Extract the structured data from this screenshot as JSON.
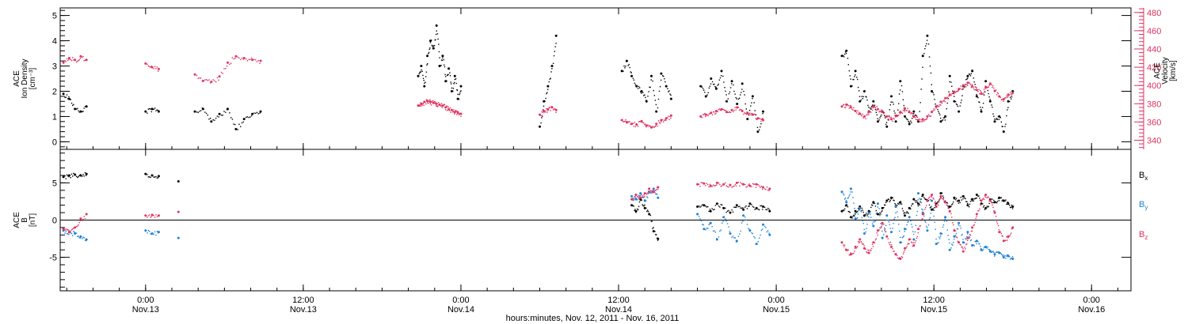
{
  "colors": {
    "black": "#000000",
    "pink": "#e0325f",
    "blue": "#1f80d8"
  },
  "chart_data": {
    "type": "scatter",
    "xlabel": "hours:minutes, Nov. 12, 2011 - Nov. 16, 2011",
    "x_ticks": [
      {
        "time": "2011-11-13 00:00",
        "hh": "0:00",
        "date": "Nov.13"
      },
      {
        "time": "2011-11-13 12:00",
        "hh": "12:00",
        "date": "Nov.13"
      },
      {
        "time": "2011-11-14 00:00",
        "hh": "0:00",
        "date": "Nov.14"
      },
      {
        "time": "2011-11-14 12:00",
        "hh": "12:00",
        "date": "Nov.14"
      },
      {
        "time": "2011-11-15 00:00",
        "hh": "0:00",
        "date": "Nov.15"
      },
      {
        "time": "2011-11-15 12:00",
        "hh": "12:00",
        "date": "Nov.15"
      },
      {
        "time": "2011-11-16 00:00",
        "hh": "0:00",
        "date": "Nov.16"
      }
    ],
    "xlim": [
      "2011-11-12 17:30",
      "2011-11-16 03:00"
    ],
    "panels": [
      {
        "id": "density-velocity",
        "left_axis": {
          "label_lines": [
            "ACE",
            "Ion Density",
            "[cm⁻³]"
          ],
          "ylim": [
            -0.3,
            5.3
          ],
          "ticks": [
            "0",
            "1",
            "2",
            "3",
            "4",
            "5"
          ]
        },
        "right_axis": {
          "label_lines": [
            "ACE",
            "Velocity",
            "[km/s]"
          ],
          "ylim": [
            330,
            485
          ],
          "ticks": [
            "340",
            "360",
            "380",
            "400",
            "420",
            "440",
            "460",
            "480"
          ]
        },
        "series": [
          {
            "axis": "left",
            "color_key": "black",
            "segments": [
              {
                "start": "2011-11-12 17:45",
                "end": "2011-11-12 19:30",
                "values": [
                  1.9,
                  1.7,
                  1.3,
                  1.2,
                  1.4
                ]
              },
              {
                "start": "2011-11-13 00:00",
                "end": "2011-11-13 01:00",
                "values": [
                  1.2,
                  1.3,
                  1.2
                ]
              },
              {
                "start": "2011-11-13 03:45",
                "end": "2011-11-13 08:45",
                "values": [
                  1.2,
                  1.3,
                  0.8,
                  1.1,
                  1.3,
                  0.5,
                  0.9,
                  1.1,
                  1.2
                ]
              },
              {
                "start": "2011-11-13 20:45",
                "end": "2011-11-14 00:00",
                "values": [
                  2.6,
                  3.0,
                  2.2,
                  3.4,
                  4.0,
                  3.7,
                  4.6,
                  3.0,
                  3.4,
                  2.4,
                  2.9,
                  2.0,
                  2.6,
                  1.7,
                  2.2
                ]
              },
              {
                "start": "2011-11-14 06:00",
                "end": "2011-11-14 07:15",
                "values": [
                  0.6,
                  1.6,
                  2.2,
                  3.0,
                  4.2
                ]
              },
              {
                "start": "2011-11-14 12:15",
                "end": "2011-11-14 16:00",
                "values": [
                  2.8,
                  3.2,
                  2.6,
                  2.2,
                  2.0,
                  1.6,
                  2.6,
                  1.2,
                  2.7,
                  2.2,
                  1.7
                ]
              },
              {
                "start": "2011-11-14 18:15",
                "end": "2011-11-14 23:00",
                "values": [
                  2.2,
                  1.8,
                  2.5,
                  2.1,
                  2.8,
                  1.6,
                  2.4,
                  1.5,
                  2.3,
                  0.9,
                  1.8,
                  0.4,
                  1.2
                ]
              },
              {
                "start": "2011-11-15 05:00",
                "end": "2011-11-15 18:00",
                "values": [
                  3.4,
                  3.6,
                  2.2,
                  2.8,
                  1.6,
                  2.0,
                  1.2,
                  1.6,
                  0.8,
                  1.2,
                  0.6,
                  1.8,
                  0.8,
                  2.4,
                  1.0,
                  0.7,
                  1.2,
                  0.8,
                  3.4,
                  4.2,
                  2.0,
                  1.4,
                  0.8,
                  1.0,
                  2.6,
                  1.6,
                  1.2,
                  2.2,
                  2.6,
                  2.8,
                  1.8,
                  1.2,
                  2.4,
                  1.6,
                  0.8,
                  1.0,
                  0.4,
                  1.6,
                  2.0
                ]
              }
            ]
          },
          {
            "axis": "right",
            "color_key": "pink",
            "segments": [
              {
                "start": "2011-11-12 17:45",
                "end": "2011-11-12 19:30",
                "values": [
                  425,
                  430,
                  428,
                  432,
                  428
                ]
              },
              {
                "start": "2011-11-13 00:00",
                "end": "2011-11-13 01:00",
                "values": [
                  424,
                  420,
                  418
                ]
              },
              {
                "start": "2011-11-13 03:45",
                "end": "2011-11-13 08:45",
                "values": [
                  412,
                  405,
                  404,
                  410,
                  425,
                  432,
                  430,
                  428,
                  427
                ]
              },
              {
                "start": "2011-11-13 20:45",
                "end": "2011-11-14 00:00",
                "values": [
                  378,
                  380,
                  382,
                  383,
                  382,
                  381,
                  380,
                  379,
                  378,
                  376,
                  374,
                  373,
                  371,
                  370,
                  369
                ]
              },
              {
                "start": "2011-11-14 06:00",
                "end": "2011-11-14 07:15",
                "values": [
                  368,
                  372,
                  374,
                  376,
                  373
                ]
              },
              {
                "start": "2011-11-14 12:15",
                "end": "2011-11-14 16:00",
                "values": [
                  362,
                  360,
                  358,
                  357,
                  361,
                  356,
                  354,
                  358,
                  362,
                  364,
                  367
                ]
              },
              {
                "start": "2011-11-14 18:15",
                "end": "2011-11-14 23:00",
                "values": [
                  366,
                  368,
                  370,
                  372,
                  374,
                  371,
                  373,
                  376,
                  372,
                  370,
                  368,
                  364,
                  362
                ]
              },
              {
                "start": "2011-11-15 05:00",
                "end": "2011-11-15 18:00",
                "values": [
                  377,
                  379,
                  376,
                  372,
                  369,
                  366,
                  371,
                  377,
                  374,
                  371,
                  366,
                  363,
                  367,
                  371,
                  375,
                  371,
                  366,
                  362,
                  363,
                  366,
                  371,
                  377,
                  382,
                  386,
                  390,
                  393,
                  396,
                  400,
                  403,
                  399,
                  395,
                  391,
                  398,
                  402,
                  394,
                  388,
                  385,
                  390,
                  392
                ]
              }
            ]
          }
        ]
      },
      {
        "id": "magnetic-field",
        "left_axis": {
          "label_lines": [
            "ACE",
            "B",
            "[nT]"
          ],
          "ylim": [
            -9.5,
            9.5
          ],
          "ticks": [
            "-5",
            "0",
            "5"
          ]
        },
        "zero_line": true,
        "legend": [
          {
            "label": "B",
            "sub": "x",
            "color_key": "black"
          },
          {
            "label": "B",
            "sub": "y",
            "color_key": "blue"
          },
          {
            "label": "B",
            "sub": "z",
            "color_key": "pink"
          }
        ],
        "series": [
          {
            "name": "Bx",
            "axis": "left",
            "color_key": "black",
            "segments": [
              {
                "start": "2011-11-12 17:45",
                "end": "2011-11-12 19:30",
                "values": [
                  5.8,
                  6.0,
                  6.1,
                  6.0,
                  6.2
                ]
              },
              {
                "start": "2011-11-13 00:00",
                "end": "2011-11-13 01:00",
                "values": [
                  6.2,
                  6.0,
                  5.9
                ]
              },
              {
                "start": "2011-11-13 02:30",
                "end": "2011-11-13 02:30",
                "values": [
                  5.2
                ]
              },
              {
                "start": "2011-11-14 13:00",
                "end": "2011-11-14 15:00",
                "values": [
                  2.0,
                  1.2,
                  2.8,
                  1.6,
                  0.8,
                  -1.5,
                  -2.5
                ]
              },
              {
                "start": "2011-11-14 18:00",
                "end": "2011-11-14 23:30",
                "values": [
                  1.8,
                  2.0,
                  1.2,
                  2.2,
                  1.6,
                  1.0,
                  2.0,
                  1.4,
                  2.2,
                  1.6,
                  1.8,
                  1.2
                ]
              },
              {
                "start": "2011-11-15 05:00",
                "end": "2011-11-15 18:00",
                "values": [
                  1.2,
                  2.0,
                  0.4,
                  1.2,
                  1.8,
                  0.6,
                  1.2,
                  2.4,
                  0.8,
                  1.6,
                  2.6,
                  3.0,
                  1.8,
                  2.4,
                  0.6,
                  1.6,
                  2.8,
                  2.2,
                  3.4,
                  2.6,
                  1.4,
                  2.2,
                  3.6,
                  2.4,
                  1.8,
                  3.0,
                  2.6,
                  3.2,
                  2.0,
                  2.8,
                  3.4,
                  2.2,
                  1.6,
                  2.8,
                  2.4,
                  3.0,
                  2.6,
                  2.2,
                  1.8
                ]
              }
            ]
          },
          {
            "name": "By",
            "axis": "left",
            "color_key": "blue",
            "segments": [
              {
                "start": "2011-11-12 17:45",
                "end": "2011-11-12 19:30",
                "values": [
                  -1.4,
                  -1.6,
                  -1.8,
                  -2.2,
                  -2.6
                ]
              },
              {
                "start": "2011-11-13 00:00",
                "end": "2011-11-13 01:00",
                "values": [
                  -1.4,
                  -1.8,
                  -1.6
                ]
              },
              {
                "start": "2011-11-13 02:30",
                "end": "2011-11-13 02:30",
                "values": [
                  -2.4
                ]
              },
              {
                "start": "2011-11-14 13:00",
                "end": "2011-11-14 15:00",
                "values": [
                  3.2,
                  2.8,
                  3.6,
                  2.6,
                  3.8,
                  4.2,
                  3.0
                ]
              },
              {
                "start": "2011-11-14 18:00",
                "end": "2011-11-14 23:30",
                "values": [
                  0.8,
                  -1.2,
                  -0.4,
                  -2.6,
                  0.4,
                  -1.8,
                  -2.8,
                  0.6,
                  -1.4,
                  -3.2,
                  -0.6,
                  -2.0
                ]
              },
              {
                "start": "2011-11-15 05:00",
                "end": "2011-11-15 18:00",
                "values": [
                  3.8,
                  2.4,
                  4.2,
                  0.2,
                  1.6,
                  -1.8,
                  1.0,
                  -0.8,
                  2.2,
                  -2.4,
                  0.6,
                  -1.6,
                  1.8,
                  -3.0,
                  -1.2,
                  0.4,
                  -2.6,
                  3.6,
                  1.0,
                  -1.4,
                  2.6,
                  -3.2,
                  -1.8,
                  0.4,
                  -4.0,
                  -2.2,
                  -0.4,
                  -3.0,
                  -1.6,
                  -3.4,
                  -2.8,
                  -4.0,
                  -3.6,
                  -4.2,
                  -4.6,
                  -4.4,
                  -5.0,
                  -4.8,
                  -5.2
                ]
              }
            ]
          },
          {
            "name": "Bz",
            "axis": "left",
            "color_key": "pink",
            "segments": [
              {
                "start": "2011-11-12 17:45",
                "end": "2011-11-12 19:30",
                "values": [
                  -1.2,
                  -1.6,
                  -1.0,
                  0.2,
                  0.8
                ]
              },
              {
                "start": "2011-11-13 00:00",
                "end": "2011-11-13 01:00",
                "values": [
                  0.6,
                  0.7,
                  0.6
                ]
              },
              {
                "start": "2011-11-13 02:30",
                "end": "2011-11-13 02:30",
                "values": [
                  1.1
                ]
              },
              {
                "start": "2011-11-14 13:00",
                "end": "2011-11-14 15:00",
                "values": [
                  2.8,
                  3.4,
                  3.0,
                  3.6,
                  4.2,
                  3.8,
                  4.4
                ]
              },
              {
                "start": "2011-11-14 18:00",
                "end": "2011-11-14 23:30",
                "values": [
                  4.8,
                  4.9,
                  4.6,
                  5.0,
                  4.8,
                  4.7,
                  5.0,
                  4.8,
                  4.6,
                  4.8,
                  4.4,
                  4.2
                ]
              },
              {
                "start": "2011-11-15 05:00",
                "end": "2011-11-15 18:00",
                "values": [
                  -3.0,
                  -4.0,
                  -4.6,
                  -3.6,
                  -2.6,
                  -3.8,
                  -4.4,
                  -3.0,
                  -1.4,
                  -0.4,
                  -2.2,
                  -3.6,
                  -4.6,
                  -5.2,
                  -3.8,
                  -2.6,
                  -3.4,
                  -1.2,
                  0.8,
                  2.6,
                  3.4,
                  1.8,
                  3.2,
                  2.4,
                  1.2,
                  -1.4,
                  -3.0,
                  -4.2,
                  -2.4,
                  -1.0,
                  0.8,
                  2.6,
                  3.4,
                  2.6,
                  1.0,
                  -1.6,
                  -2.8,
                  -2.2,
                  -1.0
                ]
              }
            ]
          }
        ]
      }
    ]
  }
}
